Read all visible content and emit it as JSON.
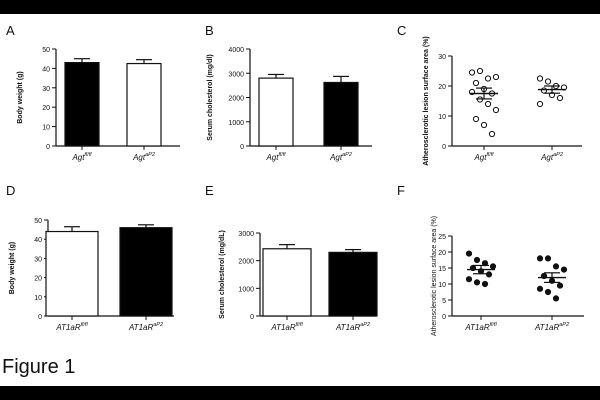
{
  "figure_label": "Figure 1",
  "chart_data": [
    {
      "id": "A",
      "panel_label": "A",
      "type": "bar",
      "ylabel": "Body weight (g)",
      "ylim": [
        0,
        50
      ],
      "yticks": [
        0,
        10,
        20,
        30,
        40,
        50
      ],
      "categories": [
        {
          "base": "Agt",
          "sup": "fl/fl"
        },
        {
          "base": "Agt",
          "sup": "aP2"
        }
      ],
      "values": [
        43,
        42.5
      ],
      "errors": [
        2,
        2
      ],
      "fills": [
        "#000000",
        "#ffffff"
      ]
    },
    {
      "id": "B",
      "panel_label": "B",
      "type": "bar",
      "ylabel": "Serum cholesterol (mg/dl)",
      "ylim": [
        0,
        4000
      ],
      "yticks": [
        0,
        1000,
        2000,
        3000,
        4000
      ],
      "categories": [
        {
          "base": "Agt",
          "sup": "fl/fl"
        },
        {
          "base": "Agt",
          "sup": "aP2"
        }
      ],
      "values": [
        2800,
        2620
      ],
      "errors": [
        150,
        250
      ],
      "fills": [
        "#ffffff",
        "#000000"
      ]
    },
    {
      "id": "C",
      "panel_label": "C",
      "type": "scatter",
      "ylabel": "Atherosclerotic lesion surface area (%)",
      "ylim": [
        0,
        30
      ],
      "yticks": [
        0,
        10,
        20,
        30
      ],
      "categories": [
        {
          "base": "Agt",
          "sup": "fl/fl"
        },
        {
          "base": "Agt",
          "sup": "aP2"
        }
      ],
      "means": [
        17.5,
        18.8
      ],
      "errors": [
        1.8,
        1.2
      ],
      "marker": "open",
      "points": [
        [
          24.5,
          25,
          22.5,
          23,
          21,
          19,
          17.5,
          18,
          15.5,
          14,
          12,
          9,
          7,
          4
        ],
        [
          22.5,
          21.5,
          20,
          19.5,
          18.5,
          17,
          16,
          14
        ]
      ]
    },
    {
      "id": "D",
      "panel_label": "D",
      "type": "bar",
      "ylabel": "Body weight (g)",
      "ylim": [
        0,
        50
      ],
      "yticks": [
        0,
        10,
        20,
        30,
        40,
        50
      ],
      "categories": [
        {
          "base": "AT1aR",
          "sup": "fl/fl"
        },
        {
          "base": "AT1aR",
          "sup": "aP2"
        }
      ],
      "values": [
        44,
        46
      ],
      "errors": [
        2.5,
        1.5
      ],
      "fills": [
        "#ffffff",
        "#000000"
      ]
    },
    {
      "id": "E",
      "panel_label": "E",
      "type": "bar",
      "ylabel": "Serum cholesterol (mg/dL)",
      "ylim": [
        0,
        3000
      ],
      "yticks": [
        0,
        1000,
        2000,
        3000
      ],
      "categories": [
        {
          "base": "AT1aR",
          "sup": "fl/fl"
        },
        {
          "base": "AT1aR",
          "sup": "aP2"
        }
      ],
      "values": [
        2430,
        2300
      ],
      "errors": [
        150,
        100
      ],
      "fills": [
        "#ffffff",
        "#000000"
      ]
    },
    {
      "id": "F",
      "panel_label": "F",
      "type": "scatter",
      "ylabel": "Atherosclerotic lesion surface area (%)",
      "ylim": [
        0,
        25
      ],
      "yticks": [
        0,
        5,
        10,
        15,
        20,
        25
      ],
      "categories": [
        {
          "base": "AT1aR",
          "sup": "fl/fl"
        },
        {
          "base": "AT1aR",
          "sup": "aP2"
        }
      ],
      "means": [
        14.5,
        12
      ],
      "errors": [
        1.3,
        1.5
      ],
      "marker": "filled",
      "points": [
        [
          19.5,
          17.5,
          16.5,
          15.5,
          15,
          14,
          13,
          11.5,
          10.5,
          10
        ],
        [
          18,
          18,
          15.5,
          14.5,
          12.5,
          11,
          9.5,
          8.5,
          7.5,
          5.5
        ]
      ]
    }
  ]
}
